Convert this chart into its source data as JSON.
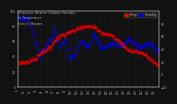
{
  "title": "Milwaukee Weather Outdoor Humidity",
  "title2": "vs Temperature",
  "title3": "Every 5 Minutes",
  "background_color": "#111111",
  "plot_bg_color": "#111111",
  "grid_color": "#333333",
  "blue_color": "#0000ff",
  "red_color": "#ff0000",
  "legend_blue_label": "Humidity",
  "legend_red_label": "Temp",
  "text_color": "#aaaaaa",
  "ylim_left": [
    0,
    100
  ],
  "ylim_right": [
    -20,
    100
  ],
  "yticks_left": [
    0,
    20,
    40,
    60,
    80,
    100
  ],
  "yticks_right": [
    -20,
    0,
    20,
    40,
    60,
    80
  ],
  "n_points": 288
}
